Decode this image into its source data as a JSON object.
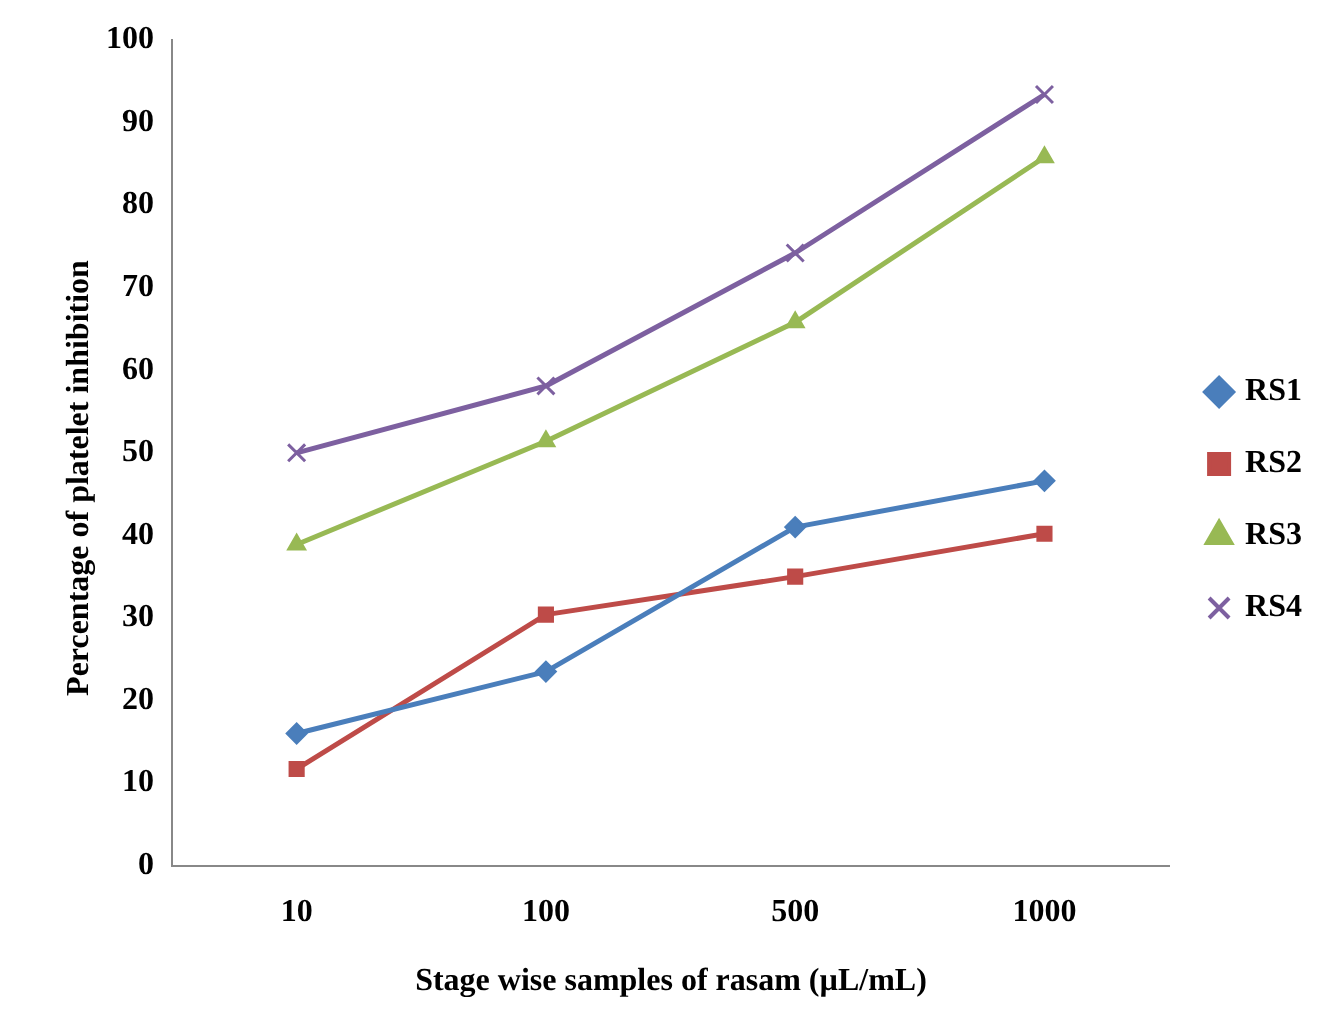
{
  "chart_data": {
    "type": "line",
    "xlabel": "Stage wise samples of rasam (µL/mL)",
    "ylabel": "Percentage of platelet inhibition",
    "categories": [
      "10",
      "100",
      "500",
      "1000"
    ],
    "series": [
      {
        "name": "RS1",
        "color": "#4a7ebb",
        "marker": "diamond",
        "values": [
          16.0,
          23.5,
          41.0,
          46.6
        ]
      },
      {
        "name": "RS2",
        "color": "#be4b48",
        "marker": "square",
        "values": [
          11.7,
          30.4,
          35.0,
          40.2
        ]
      },
      {
        "name": "RS3",
        "color": "#98b954",
        "marker": "triangle",
        "values": [
          38.9,
          51.4,
          65.8,
          85.8
        ]
      },
      {
        "name": "RS4",
        "color": "#7d60a0",
        "marker": "cross",
        "values": [
          50.0,
          58.1,
          74.2,
          93.4
        ]
      }
    ],
    "ylim": [
      0,
      100
    ],
    "yticks": [
      0,
      10,
      20,
      30,
      40,
      50,
      60,
      70,
      80,
      90,
      100
    ],
    "grid": false,
    "legend": "right"
  }
}
